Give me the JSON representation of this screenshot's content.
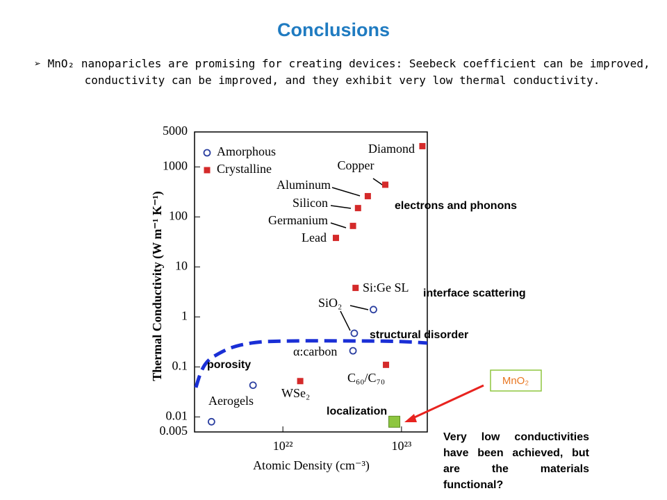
{
  "slide": {
    "title": "Conclusions",
    "bullet": "MnO₂ nanoparicles are promising for creating devices: Seebeck coefficient can be improved, conductivity can be improved, and they exhibit very low thermal conductivity."
  },
  "chart_data": {
    "type": "scatter",
    "x_label": "Atomic Density (cm⁻³)",
    "y_label": "Thermal Conductivity (W m⁻¹ K⁻¹)",
    "log_x": true,
    "log_y": true,
    "xlim": [
      1.8e+21,
      1.65e+23
    ],
    "xticks": [
      {
        "value": 1e+22,
        "label": "10²²"
      },
      {
        "value": 1e+23,
        "label": "10²³"
      }
    ],
    "ylim": [
      0.005,
      5000
    ],
    "yticks": [
      0.005,
      0.01,
      0.1,
      1,
      10,
      100,
      1000,
      5000
    ],
    "legend": "upper left",
    "series": [
      {
        "name": "Amorphous",
        "color": "#2b3fa0",
        "marker": "open-circle",
        "x": [
          2.5e+21,
          5.6e+21,
          3.9e+22,
          4e+22,
          5.8e+22
        ],
        "values": [
          0.008,
          0.043,
          0.21,
          0.47,
          1.4
        ],
        "point_labels": [
          "Aerogels",
          null,
          "α:carbon",
          "SiO₂",
          null
        ]
      },
      {
        "name": "Crystalline",
        "color": "#d42a2a",
        "marker": "square",
        "x": [
          1.5e+23,
          7.3e+22,
          5.2e+22,
          4.3e+22,
          3.9e+22,
          2.8e+22,
          4.1e+22,
          1.4e+22,
          7.4e+22
        ],
        "values": [
          2600,
          440,
          260,
          150,
          66,
          38,
          3.8,
          0.052,
          0.11
        ],
        "point_labels": [
          "Diamond",
          "Copper",
          "Aluminum",
          "Silicon",
          "Germanium",
          "Lead",
          "Si:Ge SL",
          "WSe₂",
          "C₆₀/C₇₀"
        ]
      },
      {
        "name": "MnO₂",
        "color": "#8dc63f",
        "marker": "big-square",
        "x": [
          8.7e+22
        ],
        "values": [
          0.008
        ]
      }
    ],
    "annotations": [
      "electrons and phonons",
      "interface scattering",
      "structural disorder",
      "porosity",
      "localization",
      "Very low conductivities have been achieved, but are the materials functional?"
    ]
  }
}
